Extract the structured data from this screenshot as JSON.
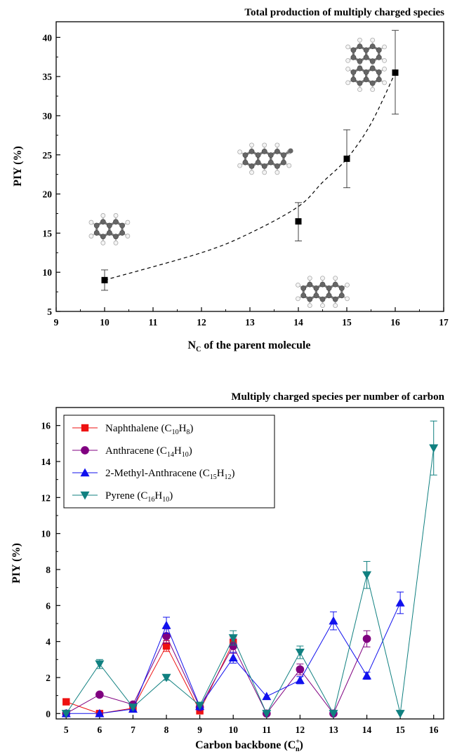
{
  "chart_data": [
    {
      "type": "scatter",
      "title": "Total production of multiply charged species",
      "xlabel": "N",
      "xlabel_sub": "C",
      "xlabel_rest": " of the parent molecule",
      "ylabel": "PIY (%)",
      "xlim": [
        9,
        17
      ],
      "ylim": [
        5,
        42
      ],
      "xticks": [
        "9",
        "10",
        "11",
        "12",
        "13",
        "14",
        "15",
        "16",
        "17"
      ],
      "yticks": [
        "5",
        "10",
        "15",
        "20",
        "25",
        "30",
        "35",
        "40"
      ],
      "points": [
        {
          "x": 10,
          "y": 9.0,
          "err_low": 7.7,
          "err_high": 10.3
        },
        {
          "x": 14,
          "y": 16.5,
          "err_low": 14.0,
          "err_high": 18.9
        },
        {
          "x": 15,
          "y": 24.5,
          "err_low": 20.8,
          "err_high": 28.2
        },
        {
          "x": 16,
          "y": 35.5,
          "err_low": 30.2,
          "err_high": 40.9
        }
      ],
      "fit_curve": {
        "style": "dashed",
        "x": [
          10,
          12,
          13,
          14,
          14.5,
          15,
          15.5,
          16
        ],
        "y": [
          9.0,
          12.5,
          15.0,
          18.4,
          21.5,
          24.5,
          29.0,
          35.5
        ]
      },
      "molecule_images": [
        {
          "name": "pyrene",
          "x": 15.4,
          "y": 36.5
        },
        {
          "name": "2-methyl-anthracene",
          "x": 13.3,
          "y": 24.5
        },
        {
          "name": "naphthalene",
          "x": 10.1,
          "y": 15.5
        },
        {
          "name": "anthracene",
          "x": 14.5,
          "y": 7.5
        }
      ]
    },
    {
      "type": "line",
      "title": "Multiply charged species per number of carbon",
      "xlabel": "Carbon backbone (C",
      "xlabel_sup": "+",
      "xlabel_sub": "n",
      "xlabel_rest": ")",
      "ylabel": "PIY (%)",
      "xlim": [
        4.7,
        16.3
      ],
      "ylim": [
        -0.3,
        17
      ],
      "xticks": [
        "5",
        "6",
        "7",
        "8",
        "9",
        "10",
        "11",
        "12",
        "13",
        "14",
        "15",
        "16"
      ],
      "yticks": [
        "0",
        "2",
        "4",
        "6",
        "8",
        "10",
        "12",
        "14",
        "16"
      ],
      "legend_position": "top-left",
      "series": [
        {
          "name": "Naphthalene (C",
          "sub1": "10",
          "mid": "H",
          "sub2": "8",
          "tail": ")",
          "color": "#ee1111",
          "marker": "square",
          "x": [
            5,
            6,
            7,
            8,
            9,
            10
          ],
          "y": [
            0.65,
            0.0,
            0.3,
            3.75,
            0.15,
            3.95
          ],
          "err": [
            0,
            0,
            0,
            0.3,
            0,
            0.3
          ]
        },
        {
          "name": "Anthracene (C",
          "sub1": "14",
          "mid": "H",
          "sub2": "10",
          "tail": ")",
          "color": "#800080",
          "marker": "circle",
          "x": [
            5,
            6,
            7,
            8,
            9,
            10,
            11,
            12,
            13,
            14
          ],
          "y": [
            0.0,
            1.05,
            0.5,
            4.3,
            0.35,
            3.75,
            0.0,
            2.45,
            0.0,
            4.15
          ],
          "err": [
            0,
            0,
            0,
            0.4,
            0,
            0.4,
            0,
            0.3,
            0,
            0.45
          ]
        },
        {
          "name": "2-Methyl-Anthracene (C",
          "sub1": "15",
          "mid": "H",
          "sub2": "12",
          "tail": ")",
          "color": "#1111ee",
          "marker": "triangle-up",
          "x": [
            5,
            6,
            7,
            8,
            9,
            10,
            11,
            12,
            13,
            14,
            15
          ],
          "y": [
            0.0,
            0.0,
            0.25,
            4.9,
            0.4,
            3.1,
            0.95,
            1.85,
            5.15,
            2.1,
            6.15
          ],
          "err": [
            0,
            0,
            0,
            0.45,
            0,
            0.3,
            0,
            0.2,
            0.5,
            0.2,
            0.6
          ]
        },
        {
          "name": "Pyrene (C",
          "sub1": "16",
          "mid": "H",
          "sub2": "10",
          "tail": ")",
          "color": "#108080",
          "marker": "triangle-down",
          "x": [
            5,
            6,
            7,
            8,
            9,
            10,
            11,
            12,
            13,
            14,
            15,
            16
          ],
          "y": [
            0.0,
            2.75,
            0.35,
            2.0,
            0.45,
            4.2,
            0.0,
            3.4,
            0.0,
            7.7,
            0.0,
            14.75
          ],
          "err": [
            0,
            0.25,
            0,
            0.15,
            0,
            0.4,
            0,
            0.35,
            0,
            0.75,
            0,
            1.5
          ]
        }
      ]
    }
  ]
}
